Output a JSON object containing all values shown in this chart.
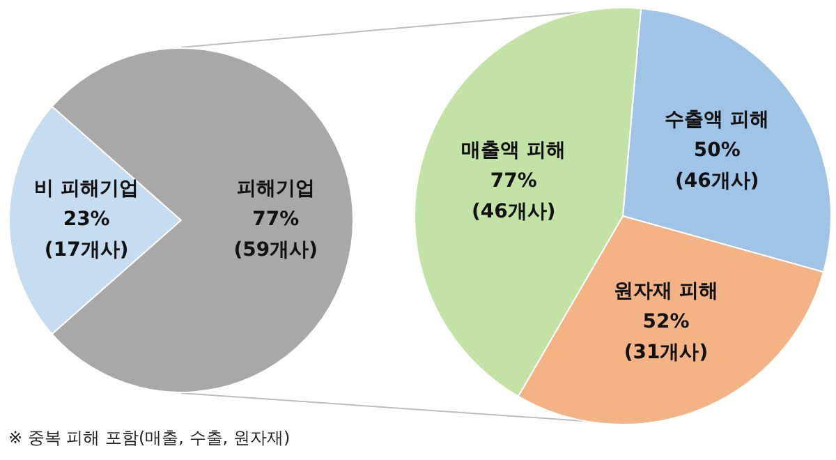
{
  "chart_data": [
    {
      "type": "pie",
      "categories": [
        "비 피해기업",
        "피해기업"
      ],
      "values": [
        23,
        77
      ],
      "colors": [
        "#c6dcf1",
        "#a8a8a8"
      ],
      "value_labels": [
        "23%\n(17개사)",
        "77%\n(59개사)"
      ],
      "legend": false,
      "annotations": [
        "※ 중복 피해 포함(매출, 수출, 원자재)"
      ]
    },
    {
      "type": "pie",
      "categories": [
        "수출액 피해",
        "원자재 피해",
        "매출액 피해"
      ],
      "values": [
        50,
        52,
        77
      ],
      "colors": [
        "#9fc4e6",
        "#f3b384",
        "#c3e3a6"
      ],
      "value_labels": [
        "50%\n(46개사)",
        "52%\n(31개사)",
        "77%\n(46개사)"
      ],
      "legend": false
    }
  ]
}
